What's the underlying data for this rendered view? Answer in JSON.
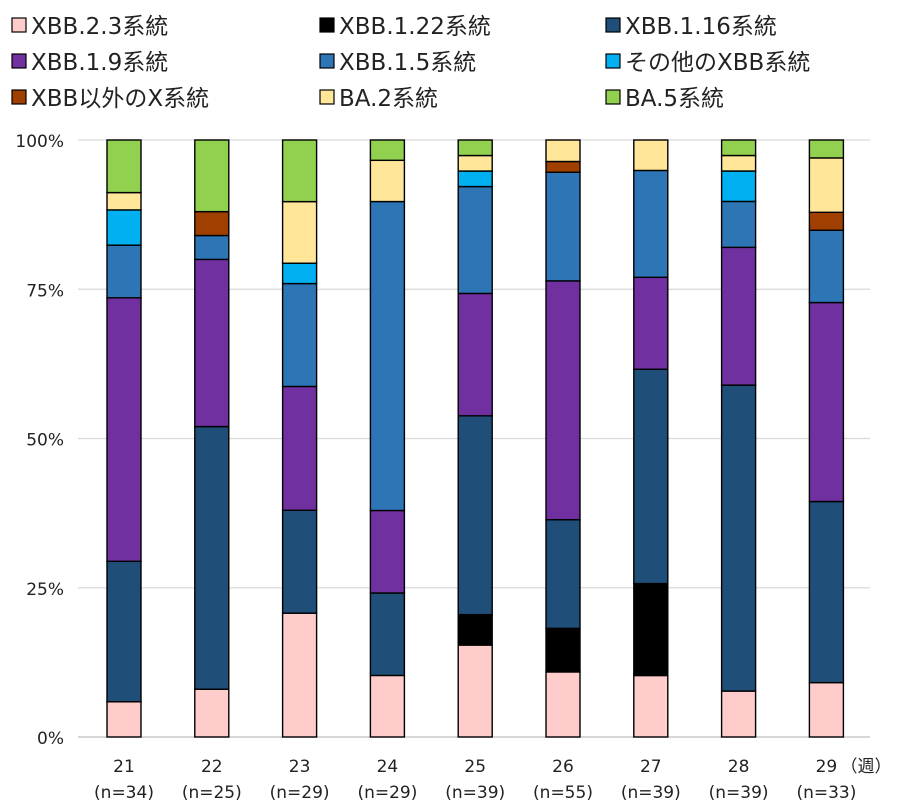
{
  "chart_data": {
    "type": "bar",
    "stacked": true,
    "normalized": true,
    "categories": [
      "21",
      "22",
      "23",
      "24",
      "25",
      "26",
      "27",
      "28",
      "29"
    ],
    "category_sublabels": [
      "(n=34)",
      "(n=25)",
      "(n=29)",
      "(n=29)",
      "(n=39)",
      "(n=55)",
      "(n=39)",
      "(n=39)",
      "(n=33)"
    ],
    "x_unit_label": "（週）",
    "y_ticks": [
      "0%",
      "25%",
      "50%",
      "75%",
      "100%"
    ],
    "ylim": [
      0,
      100
    ],
    "grid": true,
    "legend_position": "top",
    "series": [
      {
        "name": "XBB.2.3系統",
        "color": "#ffcccc",
        "values": [
          5.9,
          8.0,
          20.7,
          10.3,
          15.4,
          10.9,
          10.3,
          7.7,
          9.1
        ]
      },
      {
        "name": "XBB.1.22系統",
        "color": "#000000",
        "values": [
          0,
          0,
          0,
          0,
          5.1,
          7.3,
          15.4,
          0,
          0
        ]
      },
      {
        "name": "XBB.1.16系統",
        "color": "#1f4e79",
        "values": [
          23.5,
          44.0,
          17.2,
          13.8,
          33.3,
          18.2,
          35.9,
          51.3,
          30.3
        ]
      },
      {
        "name": "XBB.1.9系統",
        "color": "#7030a0",
        "values": [
          44.1,
          28.0,
          20.7,
          13.8,
          20.5,
          40.0,
          15.4,
          23.1,
          33.3
        ]
      },
      {
        "name": "XBB.1.5系統",
        "color": "#2e75b6",
        "values": [
          8.8,
          4.0,
          17.2,
          51.7,
          17.9,
          18.2,
          17.9,
          7.7,
          12.1
        ]
      },
      {
        "name": "その他のXBB系統",
        "color": "#00b0f0",
        "values": [
          5.9,
          0,
          3.4,
          0,
          2.6,
          0,
          0,
          5.1,
          0
        ]
      },
      {
        "name": "XBB以外のX系統",
        "color": "#a04000",
        "values": [
          0,
          4.0,
          0,
          0,
          0,
          1.8,
          0,
          0,
          3.0
        ]
      },
      {
        "name": "BA.2系統",
        "color": "#ffe699",
        "values": [
          2.9,
          0,
          10.3,
          6.9,
          2.6,
          3.6,
          5.1,
          2.6,
          9.1
        ]
      },
      {
        "name": "BA.5系統",
        "color": "#92d050",
        "values": [
          8.8,
          12.0,
          10.3,
          3.4,
          2.6,
          0,
          0,
          2.6,
          3.0
        ]
      }
    ]
  }
}
